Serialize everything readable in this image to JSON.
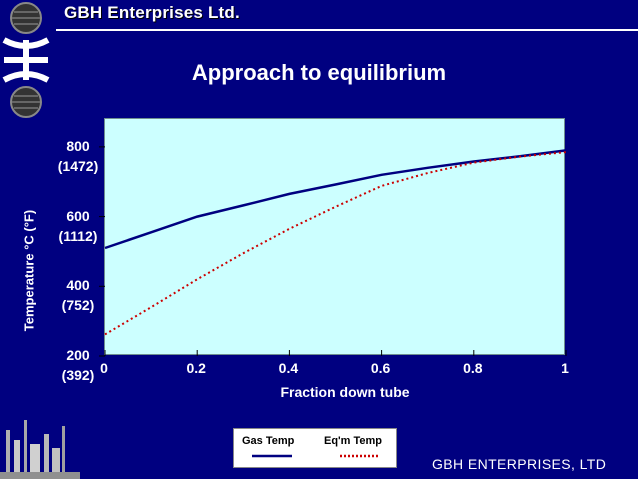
{
  "header": {
    "brand": "GBH Enterprises Ltd."
  },
  "footer": {
    "text": "GBH ENTERPRISES, LTD"
  },
  "colors": {
    "background": "#000080",
    "plot_bg": "#ccffff",
    "gas_temp": "#000080",
    "eqm_temp": "#cc0000"
  },
  "chart_data": {
    "type": "line",
    "title": "Approach to equilibrium",
    "xlabel": "Fraction down tube",
    "ylabel": "Temperature °C (°F)",
    "xlim": [
      0,
      1
    ],
    "ylim": [
      200,
      880
    ],
    "x_ticks": [
      {
        "value": 0,
        "label": "0"
      },
      {
        "value": 0.2,
        "label": "0.2"
      },
      {
        "value": 0.4,
        "label": "0.4"
      },
      {
        "value": 0.6,
        "label": "0.6"
      },
      {
        "value": 0.8,
        "label": "0.8"
      },
      {
        "value": 1,
        "label": "1"
      }
    ],
    "y_ticks": [
      {
        "value": 200,
        "label": "200",
        "label2": "(392)"
      },
      {
        "value": 400,
        "label": "400",
        "label2": "(752)"
      },
      {
        "value": 600,
        "label": "600",
        "label2": "(1112)"
      },
      {
        "value": 800,
        "label": "800",
        "label2": "(1472)"
      }
    ],
    "legend_position": "bottom-center",
    "series": [
      {
        "name": "Gas Temp",
        "style": "solid",
        "x": [
          0,
          0.1,
          0.2,
          0.3,
          0.4,
          0.5,
          0.6,
          0.7,
          0.8,
          0.9,
          1.0
        ],
        "y": [
          510,
          555,
          600,
          632,
          665,
          692,
          720,
          740,
          758,
          773,
          790
        ]
      },
      {
        "name": "Eq'm Temp",
        "style": "dotted",
        "x": [
          0,
          0.1,
          0.2,
          0.3,
          0.4,
          0.5,
          0.6,
          0.7,
          0.8,
          0.9,
          1.0
        ],
        "y": [
          262,
          340,
          420,
          495,
          565,
          628,
          688,
          725,
          755,
          772,
          785
        ]
      }
    ]
  }
}
